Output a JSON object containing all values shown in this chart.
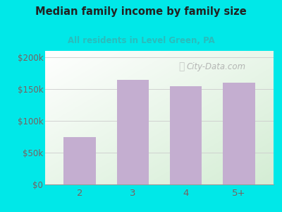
{
  "title": "Median family income by family size",
  "subtitle": "All residents in Level Green, PA",
  "categories": [
    "2",
    "3",
    "4",
    "5+"
  ],
  "values": [
    75000,
    165000,
    155000,
    160000
  ],
  "bar_color": "#c4aed0",
  "title_color": "#222222",
  "subtitle_color": "#2abcbc",
  "outer_bg": "#00e8e8",
  "yticks": [
    0,
    50000,
    100000,
    150000,
    200000
  ],
  "ytick_labels": [
    "$0",
    "$50k",
    "$100k",
    "$150k",
    "$200k"
  ],
  "ylim": [
    0,
    210000
  ],
  "watermark": "City-Data.com",
  "watermark_color": "#aaaaaa",
  "tick_color": "#7a6060",
  "grid_color": "#cccccc"
}
